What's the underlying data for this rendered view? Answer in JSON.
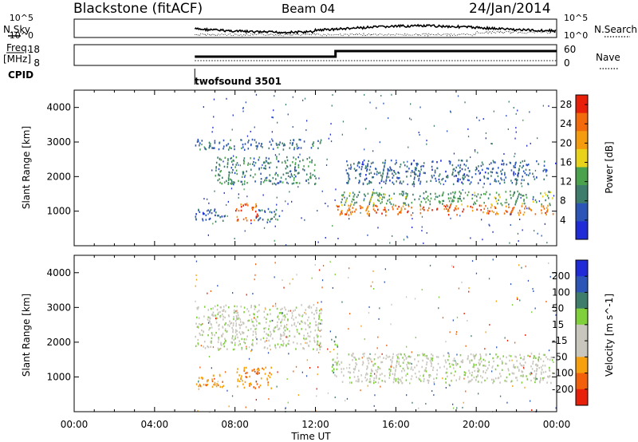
{
  "header": {
    "station": "Blackstone (fitACF)",
    "beam": "Beam 04",
    "date": "24/Jan/2014"
  },
  "labels": {
    "nsky": "N.Sky",
    "nsearch": "N.Search",
    "freq_top": "Freq.",
    "freq_unit": "[MHz]",
    "nave": "Nave",
    "cpid": "CPID",
    "cpid_value": "twofsound 3501",
    "slant_range": "Slant Range [km]",
    "time_ut": "Time UT"
  },
  "noise_panel": {
    "left_ticks": [
      "10^5",
      "10^0"
    ],
    "right_ticks": [
      "10^5",
      "10^0"
    ]
  },
  "freq_panel": {
    "left_ticks": [
      "18",
      "8"
    ],
    "right_ticks": [
      "60",
      "0"
    ]
  },
  "colors": {
    "frame": "#000000",
    "power_scale": [
      "#1f2bd6",
      "#2d55b8",
      "#3e7c6c",
      "#4aa24c",
      "#e8d21a",
      "#f59b0e",
      "#f26a0c",
      "#e8200a"
    ],
    "velocity_scale": [
      "#e8200a",
      "#f2600c",
      "#f7a00e",
      "#c9c6bd",
      "#c9c6bd",
      "#7fd03a",
      "#3e7c6c",
      "#2d55b8",
      "#1f2bd6"
    ]
  },
  "chart_data": [
    {
      "type": "heatmap",
      "title": "Power",
      "quantity": "Power",
      "xlabel": "Time UT",
      "ylabel": "Slant Range [km]",
      "xlim": [
        "00:00",
        "24:00"
      ],
      "ylim": [
        0,
        4500
      ],
      "xticks": [
        "00:00",
        "04:00",
        "08:00",
        "12:00",
        "16:00",
        "20:00",
        "00:00"
      ],
      "yticks": [
        1000,
        2000,
        3000,
        4000
      ],
      "colorbar": {
        "label": "Power [dB]",
        "ticks": [
          4,
          8,
          12,
          16,
          20,
          24,
          28
        ],
        "range": [
          0,
          30
        ]
      },
      "regions": [
        {
          "t_start": 6.0,
          "t_end": 7.5,
          "r_low": 700,
          "r_high": 1100,
          "value": 6
        },
        {
          "t_start": 8.0,
          "t_end": 9.1,
          "r_low": 750,
          "r_high": 1250,
          "value": 25
        },
        {
          "t_start": 9.0,
          "t_end": 10.2,
          "r_low": 700,
          "r_high": 1100,
          "value": 8
        },
        {
          "t_start": 6.0,
          "t_end": 12.3,
          "r_low": 2800,
          "r_high": 3100,
          "value": 8
        },
        {
          "t_start": 7.0,
          "t_end": 12.0,
          "r_low": 1800,
          "r_high": 2600,
          "value": 10
        },
        {
          "t_start": 13.0,
          "t_end": 23.8,
          "r_low": 900,
          "r_high": 1200,
          "value": 24
        },
        {
          "t_start": 13.0,
          "t_end": 23.8,
          "r_low": 1200,
          "r_high": 1600,
          "value": 12
        },
        {
          "t_start": 13.5,
          "t_end": 23.5,
          "r_low": 1800,
          "r_high": 2500,
          "value": 7
        }
      ]
    },
    {
      "type": "heatmap",
      "title": "Velocity",
      "quantity": "Velocity",
      "xlabel": "Time UT",
      "ylabel": "Slant Range [km]",
      "xlim": [
        "00:00",
        "24:00"
      ],
      "ylim": [
        0,
        4500
      ],
      "xticks": [
        "00:00",
        "04:00",
        "08:00",
        "12:00",
        "16:00",
        "20:00",
        "00:00"
      ],
      "yticks": [
        1000,
        2000,
        3000,
        4000
      ],
      "colorbar": {
        "label": "Velocity [m s^-1]",
        "ticks": [
          200,
          100,
          50,
          15,
          -15,
          -50,
          -100,
          -200
        ],
        "range": [
          -250,
          250
        ]
      },
      "regions": [
        {
          "t_start": 6.0,
          "t_end": 7.5,
          "r_low": 700,
          "r_high": 1100,
          "value": -60
        },
        {
          "t_start": 8.0,
          "t_end": 9.8,
          "r_low": 700,
          "r_high": 1300,
          "value": -70
        },
        {
          "t_start": 12.8,
          "t_end": 13.1,
          "r_low": 1000,
          "r_high": 2200,
          "value": 30
        },
        {
          "t_start": 13.0,
          "t_end": 23.8,
          "r_low": 850,
          "r_high": 1700,
          "value": 0
        },
        {
          "t_start": 6.0,
          "t_end": 12.3,
          "r_low": 1800,
          "r_high": 3100,
          "value": 0
        }
      ]
    }
  ]
}
